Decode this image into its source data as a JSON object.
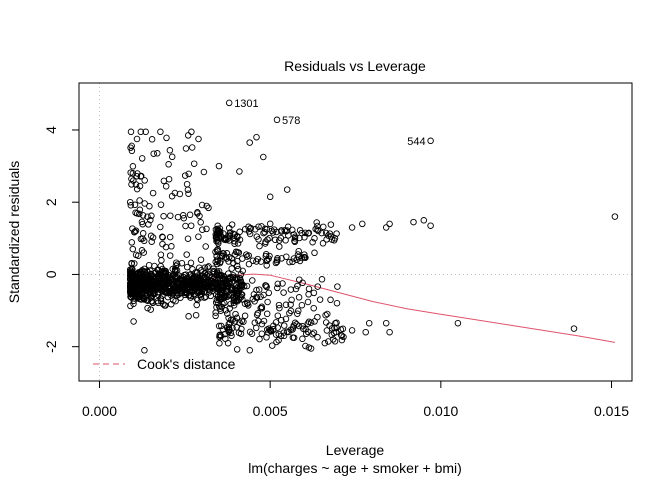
{
  "chart_data": {
    "type": "scatter",
    "title": "Residuals vs Leverage",
    "xlabel": "Leverage",
    "subtitle": "lm(charges ~ age + smoker + bmi)",
    "ylabel": "Standardized residuals",
    "xlim": [
      -0.0006,
      0.0156
    ],
    "ylim": [
      -2.95,
      5.3
    ],
    "x_ticks": [
      0.0,
      0.005,
      0.01,
      0.015
    ],
    "x_tick_labels": [
      "0.000",
      "0.005",
      "0.010",
      "0.015"
    ],
    "y_ticks": [
      -2,
      0,
      2,
      4
    ],
    "y_tick_labels": [
      "-2",
      "0",
      "2",
      "4"
    ],
    "reference_lines": {
      "x": 0,
      "y": 0
    },
    "legend": {
      "label": "Cook's distance",
      "placement": "bottom-left",
      "color": "#DF536B"
    },
    "colors": {
      "points": "#000000",
      "smooth": "#DF536B",
      "reference": "#BEBEBE"
    },
    "labeled_points": [
      {
        "label": "1301",
        "x": 0.0038,
        "y": 4.75,
        "side": "right"
      },
      {
        "label": "578",
        "x": 0.0052,
        "y": 4.28,
        "side": "right"
      },
      {
        "label": "544",
        "x": 0.0097,
        "y": 3.7,
        "side": "left"
      }
    ],
    "points": {
      "clusters": [
        {
          "x": [
            0.0009,
            0.0042
          ],
          "y_mean": -0.32,
          "y_sd": 0.2,
          "n": 650
        },
        {
          "x": [
            0.0009,
            0.0036
          ],
          "y_mean": -0.05,
          "y_sd": 0.18,
          "n": 150
        },
        {
          "x": [
            0.0009,
            0.0032
          ],
          "y_mean": 1.7,
          "y_sd": 1.0,
          "n": 130
        },
        {
          "x": [
            0.0034,
            0.0072
          ],
          "y_mean": 1.1,
          "y_sd": 0.15,
          "n": 120
        },
        {
          "x": [
            0.0034,
            0.0062
          ],
          "y_mean": 0.45,
          "y_sd": 0.1,
          "n": 60
        },
        {
          "x": [
            0.0034,
            0.0072
          ],
          "y_mean": -0.7,
          "y_sd": 0.35,
          "n": 110
        },
        {
          "x": [
            0.0035,
            0.0072
          ],
          "y_mean": -1.55,
          "y_sd": 0.2,
          "n": 110
        }
      ],
      "extra": [
        [
          0.0011,
          3.75
        ],
        [
          0.0026,
          3.85
        ],
        [
          0.0029,
          3.75
        ],
        [
          0.0044,
          3.65
        ],
        [
          0.0046,
          3.8
        ],
        [
          0.0048,
          3.25
        ],
        [
          0.0035,
          3.0
        ],
        [
          0.0041,
          2.85
        ],
        [
          0.005,
          2.15
        ],
        [
          0.0055,
          2.35
        ],
        [
          0.0063,
          1.0
        ],
        [
          0.0069,
          1.0
        ],
        [
          0.0074,
          1.3
        ],
        [
          0.0077,
          1.4
        ],
        [
          0.0084,
          1.3
        ],
        [
          0.0085,
          1.4
        ],
        [
          0.0092,
          1.45
        ],
        [
          0.0095,
          1.5
        ],
        [
          0.0097,
          1.35
        ],
        [
          0.0151,
          1.6
        ],
        [
          0.0079,
          -1.35
        ],
        [
          0.0084,
          -1.35
        ],
        [
          0.0085,
          -1.6
        ],
        [
          0.0105,
          -1.35
        ],
        [
          0.0139,
          -1.5
        ],
        [
          0.0062,
          -2.05
        ],
        [
          0.0066,
          -1.9
        ],
        [
          0.0057,
          -1.75
        ],
        [
          0.0074,
          -1.55
        ],
        [
          0.0071,
          -1.7
        ],
        [
          0.0078,
          -1.6
        ],
        [
          0.006,
          0.55
        ],
        [
          0.0063,
          0.6
        ],
        [
          0.0043,
          0.55
        ],
        [
          0.0049,
          0.25
        ],
        [
          0.0052,
          0.35
        ]
      ]
    },
    "smooth_curve": {
      "x": [
        0.0009,
        0.0015,
        0.002,
        0.0025,
        0.003,
        0.0035,
        0.004,
        0.0045,
        0.005,
        0.006,
        0.007,
        0.008,
        0.009,
        0.01,
        0.011,
        0.012,
        0.013,
        0.014,
        0.0151
      ],
      "y": [
        -0.28,
        -0.26,
        -0.23,
        -0.2,
        -0.15,
        -0.08,
        -0.02,
        0.01,
        -0.02,
        -0.25,
        -0.5,
        -0.75,
        -0.95,
        -1.1,
        -1.25,
        -1.4,
        -1.55,
        -1.7,
        -1.88
      ]
    }
  }
}
